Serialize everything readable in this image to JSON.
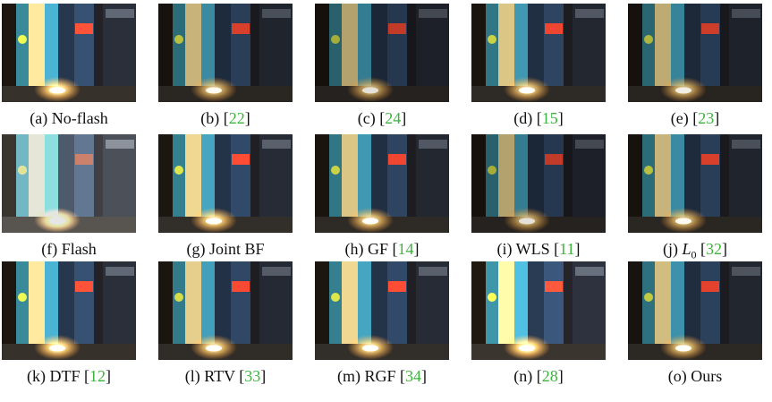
{
  "panels": [
    {
      "caption": [
        {
          "text": "(a) No-flash"
        }
      ]
    },
    {
      "caption": [
        {
          "text": "(b) ["
        },
        {
          "text": "22",
          "link": true
        },
        {
          "text": "]"
        }
      ]
    },
    {
      "caption": [
        {
          "text": "(c) ["
        },
        {
          "text": "24",
          "link": true
        },
        {
          "text": "]"
        }
      ]
    },
    {
      "caption": [
        {
          "text": "(d) ["
        },
        {
          "text": "15",
          "link": true
        },
        {
          "text": "]"
        }
      ]
    },
    {
      "caption": [
        {
          "text": "(e) ["
        },
        {
          "text": "23",
          "link": true
        },
        {
          "text": "]"
        }
      ]
    },
    {
      "caption": [
        {
          "text": "(f) Flash"
        }
      ]
    },
    {
      "caption": [
        {
          "text": "(g) Joint BF"
        }
      ]
    },
    {
      "caption": [
        {
          "text": "(h) GF ["
        },
        {
          "text": "14",
          "link": true
        },
        {
          "text": "]"
        }
      ]
    },
    {
      "caption": [
        {
          "text": "(i) WLS ["
        },
        {
          "text": "11",
          "link": true
        },
        {
          "text": "]"
        }
      ]
    },
    {
      "caption": [
        {
          "text": "(j) "
        },
        {
          "text": "L",
          "italic": true
        },
        {
          "text": "0",
          "sub": true
        },
        {
          "text": " ["
        },
        {
          "text": "32",
          "link": true
        },
        {
          "text": "]"
        }
      ]
    },
    {
      "caption": [
        {
          "text": "(k) DTF ["
        },
        {
          "text": "12",
          "link": true
        },
        {
          "text": "]"
        }
      ]
    },
    {
      "caption": [
        {
          "text": "(l) RTV ["
        },
        {
          "text": "33",
          "link": true
        },
        {
          "text": "]"
        }
      ]
    },
    {
      "caption": [
        {
          "text": "(m) RGF ["
        },
        {
          "text": "34",
          "link": true
        },
        {
          "text": "]"
        }
      ]
    },
    {
      "caption": [
        {
          "text": "(n) ["
        },
        {
          "text": "28",
          "link": true
        },
        {
          "text": "]"
        }
      ]
    },
    {
      "caption": [
        {
          "text": "(o) Ours"
        }
      ]
    }
  ]
}
